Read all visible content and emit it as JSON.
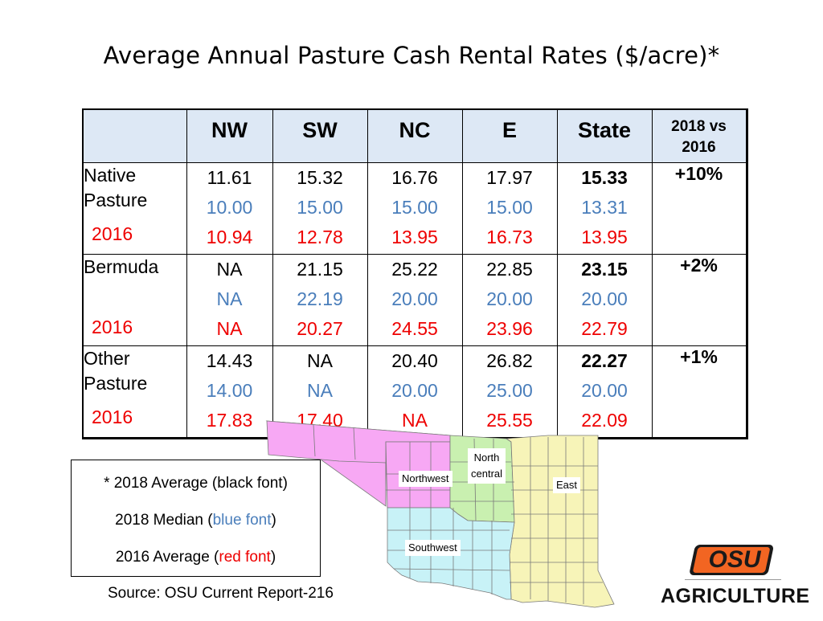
{
  "title": "Average Annual Pasture Cash Rental Rates ($/acre)*",
  "table": {
    "headers": [
      "NW",
      "SW",
      "NC",
      "E",
      "State"
    ],
    "vs_header": [
      "2018 vs",
      "2016"
    ],
    "rows": [
      {
        "label": [
          "Native",
          "Pasture"
        ],
        "year": "2016",
        "average_2018": [
          "11.61",
          "15.32",
          "16.76",
          "17.97",
          "15.33"
        ],
        "median_2018": [
          "10.00",
          "15.00",
          "15.00",
          "15.00",
          "13.31"
        ],
        "average_2016": [
          "10.94",
          "12.78",
          "13.95",
          "16.73",
          "13.95"
        ],
        "change": "+10%"
      },
      {
        "label": [
          "Bermuda"
        ],
        "year": "2016",
        "average_2018": [
          "NA",
          "21.15",
          "25.22",
          "22.85",
          "23.15"
        ],
        "median_2018": [
          "NA",
          "22.19",
          "20.00",
          "20.00",
          "20.00"
        ],
        "average_2016": [
          "NA",
          "20.27",
          "24.55",
          "23.96",
          "22.79"
        ],
        "change": "+2%"
      },
      {
        "label": [
          "Other",
          "Pasture"
        ],
        "year": "2016",
        "average_2018": [
          "14.43",
          "NA",
          "20.40",
          "26.82",
          "22.27"
        ],
        "median_2018": [
          "14.00",
          "NA",
          "20.00",
          "25.00",
          "20.00"
        ],
        "average_2016": [
          "17.83",
          "17.40",
          "NA",
          "25.55",
          "22.09"
        ],
        "change": "+1%"
      }
    ]
  },
  "map": {
    "labels": {
      "northwest": "Northwest",
      "north_central": [
        "North",
        "central"
      ],
      "east": "East",
      "southwest": "Southwest"
    },
    "colors": {
      "northwest": "#f7a8f4",
      "north_central": "#c9f0b0",
      "east": "#f7f4b8",
      "southwest": "#c8f2f7"
    }
  },
  "legend": {
    "line1": "* 2018 Average (black font)",
    "line2_pre": "2018 Median (",
    "line2_colored": "blue font",
    "line2_post": ")",
    "line3_pre": "2016 Average (",
    "line3_colored": "red font",
    "line3_post": ")"
  },
  "source": "Source:  OSU Current Report-216",
  "logo": {
    "mark": "OSU",
    "word": "AGRICULTURE",
    "brand_color": "#f26522"
  }
}
